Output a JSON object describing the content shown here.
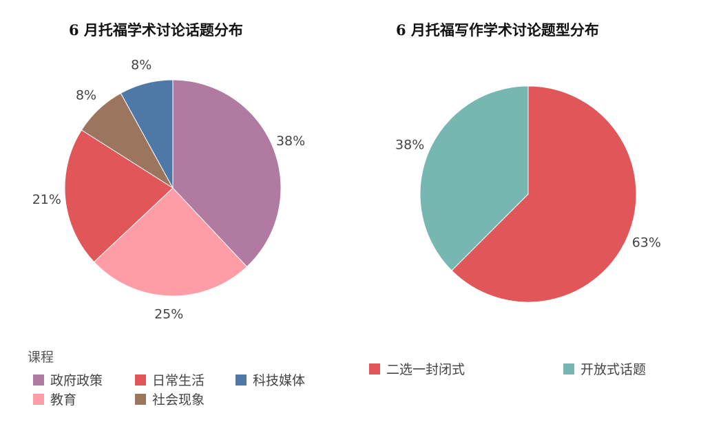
{
  "chart_data": [
    {
      "type": "pie",
      "title": "6 月托福学术讨论话题分布",
      "legend_title": "课程",
      "legend_position": "bottom",
      "slices": [
        {
          "label": "政府政策",
          "value": 38,
          "display": "38%",
          "color": "#b07aa1"
        },
        {
          "label": "教育",
          "value": 25,
          "display": "25%",
          "color": "#ff9da7"
        },
        {
          "label": "日常生活",
          "value": 21,
          "display": "21%",
          "color": "#e15759"
        },
        {
          "label": "社会现象",
          "value": 8,
          "display": "8%",
          "color": "#9c755f"
        },
        {
          "label": "科技媒体",
          "value": 8,
          "display": "8%",
          "color": "#4e79a7"
        }
      ]
    },
    {
      "type": "pie",
      "title": "6  月托福写作学术讨论题型分布",
      "legend_position": "bottom",
      "slices": [
        {
          "label": "二选一封闭式",
          "value": 62.5,
          "display": "63%",
          "color": "#e15759"
        },
        {
          "label": "开放式话题",
          "value": 37.5,
          "display": "38%",
          "color": "#76b7b2"
        }
      ]
    }
  ]
}
